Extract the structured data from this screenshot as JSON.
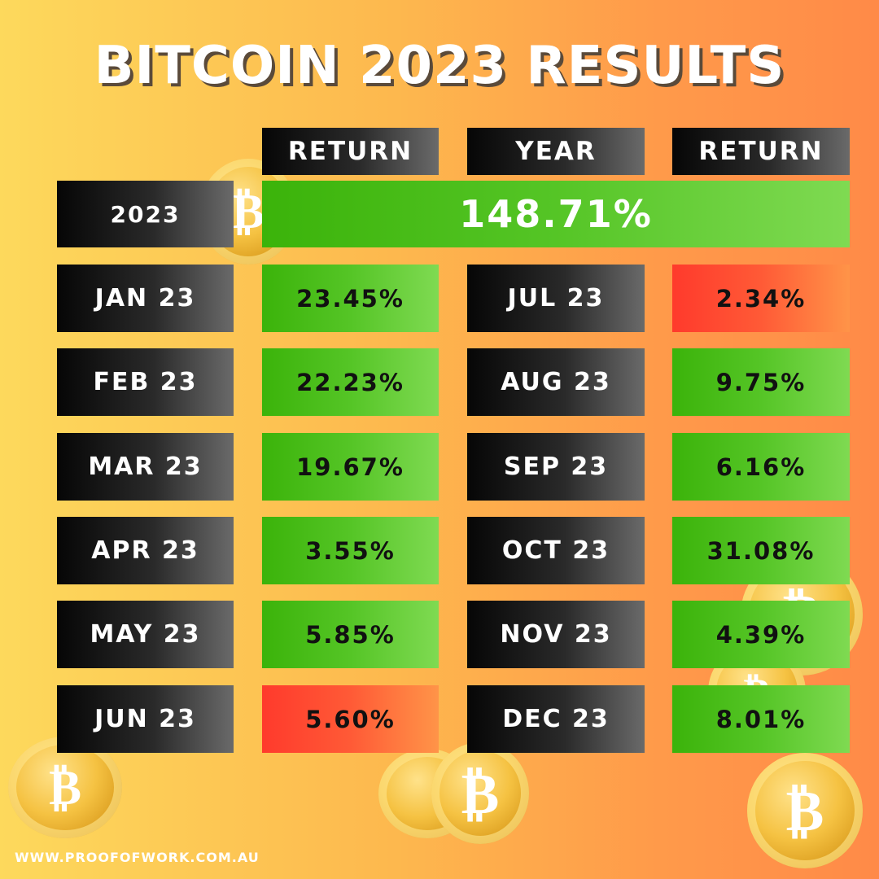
{
  "title": "BITCOIN 2023 RESULTS",
  "headers": [
    "RETURN",
    "YEAR",
    "RETURN"
  ],
  "year_row": {
    "label": "2023",
    "value": "148.71%",
    "color": "green"
  },
  "rows": [
    [
      {
        "month": "JAN 23",
        "return": "23.45%",
        "color": "green"
      },
      {
        "month": "JUL 23",
        "return": "2.34%",
        "color": "red"
      }
    ],
    [
      {
        "month": "FEB 23",
        "return": "22.23%",
        "color": "green"
      },
      {
        "month": "AUG 23",
        "return": "9.75%",
        "color": "green"
      }
    ],
    [
      {
        "month": "MAR 23",
        "return": "19.67%",
        "color": "green"
      },
      {
        "month": "SEP 23",
        "return": "6.16%",
        "color": "green"
      }
    ],
    [
      {
        "month": "APR 23",
        "return": "3.55%",
        "color": "green"
      },
      {
        "month": "OCT 23",
        "return": "31.08%",
        "color": "green"
      }
    ],
    [
      {
        "month": "MAY 23",
        "return": "5.85%",
        "color": "green"
      },
      {
        "month": "NOV 23",
        "return": "4.39%",
        "color": "green"
      }
    ],
    [
      {
        "month": "JUN 23",
        "return": "5.60%",
        "color": "red"
      },
      {
        "month": "DEC 23",
        "return": "8.01%",
        "color": "green"
      }
    ]
  ],
  "footer": "WWW.PROOFOFWORK.COM.AU"
}
